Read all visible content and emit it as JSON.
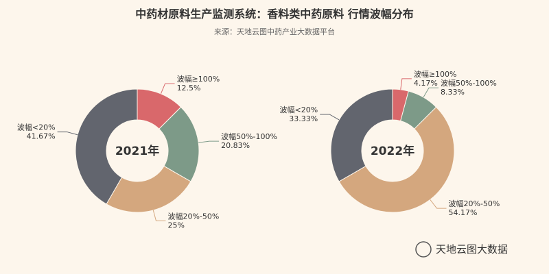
{
  "title": "中药材原料生产监测系统：香料类中药原料 行情波幅分布",
  "subtitle": "来源：天地云图中药产业大数据平台",
  "brand": "天地云图大数据",
  "chart_data": [
    {
      "type": "pie",
      "center_label": "2021年",
      "categories": [
        "波幅≥100%",
        "波幅50%-100%",
        "波幅20%-50%",
        "波幅<20%"
      ],
      "values": [
        12.5,
        20.83,
        25,
        41.67
      ],
      "value_labels": [
        "12.5%",
        "20.83%",
        "25%",
        "41.67%"
      ],
      "colors": [
        "#d9686b",
        "#7d9a88",
        "#d4a77e",
        "#62656e"
      ]
    },
    {
      "type": "pie",
      "center_label": "2022年",
      "categories": [
        "波幅≥100%",
        "波幅50%-100%",
        "波幅20%-50%",
        "波幅<20%"
      ],
      "values": [
        4.17,
        8.33,
        54.17,
        33.33
      ],
      "value_labels": [
        "4.17%",
        "8.33%",
        "54.17%",
        "33.33%"
      ],
      "colors": [
        "#d9686b",
        "#7d9a88",
        "#d4a77e",
        "#62656e"
      ]
    }
  ]
}
